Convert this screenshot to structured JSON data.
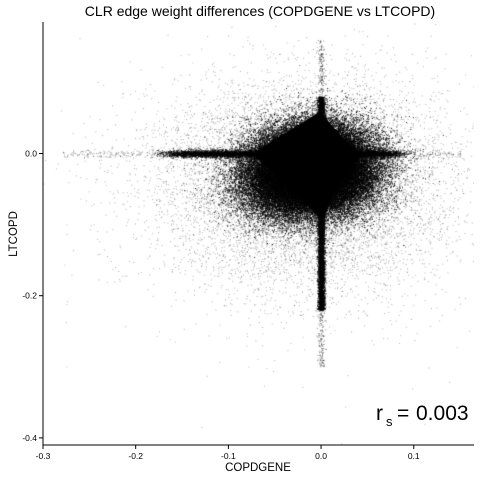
{
  "chart_data": {
    "type": "scatter",
    "title": "CLR edge weight differences (COPDGENE vs LTCOPD)",
    "xlabel": "COPDGENE",
    "ylabel": "LTCOPD",
    "xlim": [
      -0.3,
      0.165
    ],
    "ylim": [
      -0.41,
      0.185
    ],
    "x_ticks": [
      -0.3,
      -0.2,
      -0.1,
      0.0,
      0.1
    ],
    "x_tick_labels": [
      "-0.3",
      "-0.2",
      "-0.1",
      "0.0",
      "0.1"
    ],
    "y_ticks": [
      0.0,
      -0.2,
      -0.4
    ],
    "y_tick_labels": [
      "0.0",
      "-0.2",
      "-0.4"
    ],
    "grid": false,
    "point_color": "#000000",
    "annotation": {
      "symbol": "r",
      "subscript": "s",
      "relation": "=",
      "value": "0.003",
      "position": "bottom-right"
    },
    "series": [
      {
        "clusters": [
          {
            "shape": "dense-core",
            "x_range": [
              -0.1,
              0.04
            ],
            "y_range": [
              -0.1,
              0.05
            ],
            "center": [
              -0.01,
              -0.02
            ]
          },
          {
            "shape": "horizontal-arm",
            "x_range": [
              -0.2,
              0.1
            ],
            "y": 0.0
          },
          {
            "shape": "vertical-arm",
            "x": 0.0,
            "y_range": [
              -0.3,
              0.16
            ]
          },
          {
            "shape": "diffuse-cloud",
            "x_range": [
              -0.28,
              0.15
            ],
            "y_range": [
              -0.38,
              0.12
            ]
          }
        ]
      }
    ]
  }
}
